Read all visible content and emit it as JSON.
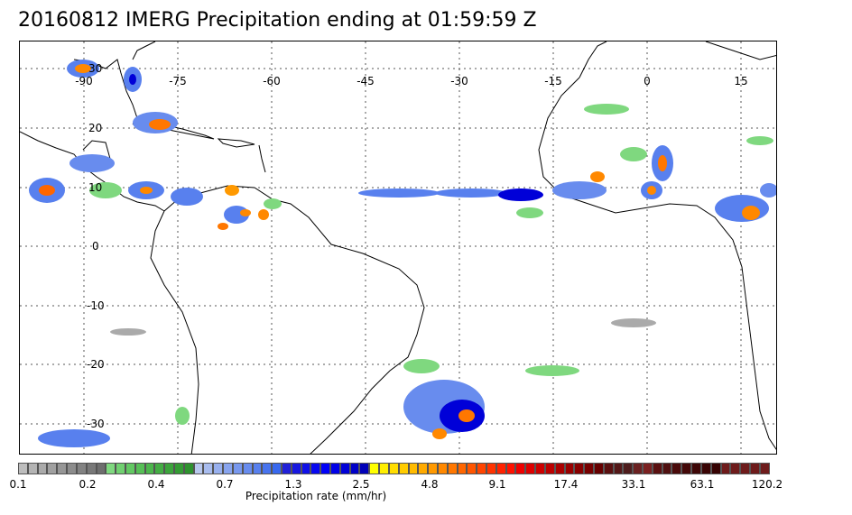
{
  "title": "20160812 IMERG Precipitation ending at 01:59:59 Z",
  "map": {
    "lon_labels": [
      "-90",
      "-75",
      "-60",
      "-45",
      "-30",
      "-15",
      "0",
      "15"
    ],
    "lat_labels": [
      "30",
      "20",
      "10",
      "0",
      "-10",
      "-20",
      "-30"
    ],
    "land_outline_color": "#000000",
    "grid_style": "dotted"
  },
  "colorbar": {
    "title": "Precipitation rate (mm/hr)",
    "tick_labels": [
      "0.1",
      "0.2",
      "0.4",
      "0.7",
      "1.3",
      "2.5",
      "4.8",
      "9.1",
      "17.4",
      "33.1",
      "63.1",
      "120.2"
    ],
    "colors": [
      "#bdbdbd",
      "#b4b4b4",
      "#aaaaaa",
      "#a0a0a0",
      "#969696",
      "#8c8c8c",
      "#828282",
      "#787878",
      "#6e6e6e",
      "#7fd87f",
      "#70d070",
      "#62c862",
      "#56bf56",
      "#4cb64c",
      "#44ad44",
      "#3ca43c",
      "#349b34",
      "#2e922e",
      "#b8c8ee",
      "#a8bcee",
      "#98b0ee",
      "#88a4ee",
      "#7898ee",
      "#688cee",
      "#5880ee",
      "#4874ee",
      "#3868ee",
      "#2020d8",
      "#1818e0",
      "#1010e8",
      "#0808f0",
      "#0000f8",
      "#0000e8",
      "#0000d8",
      "#0000c8",
      "#0000b8",
      "#ffff00",
      "#ffee00",
      "#ffdd00",
      "#ffcc00",
      "#ffbb00",
      "#ffaa00",
      "#ff9900",
      "#ff8800",
      "#ff7700",
      "#ff6600",
      "#ff5500",
      "#ff4400",
      "#ff3300",
      "#ff2200",
      "#ff1100",
      "#ee0000",
      "#dd0000",
      "#cc0000",
      "#bb0000",
      "#aa0000",
      "#990000",
      "#880000",
      "#770000",
      "#660000",
      "#5a1010",
      "#541818",
      "#4e1c1c",
      "#6a2020",
      "#7a2020",
      "#5a1010",
      "#501010",
      "#4a0a0a",
      "#440808",
      "#3e0606",
      "#3a0404",
      "#360202",
      "#6e1b1b",
      "#6e1b1b",
      "#6e1b1b",
      "#6e1b1b",
      "#6e1b1b",
      "#6e1b1b"
    ]
  }
}
